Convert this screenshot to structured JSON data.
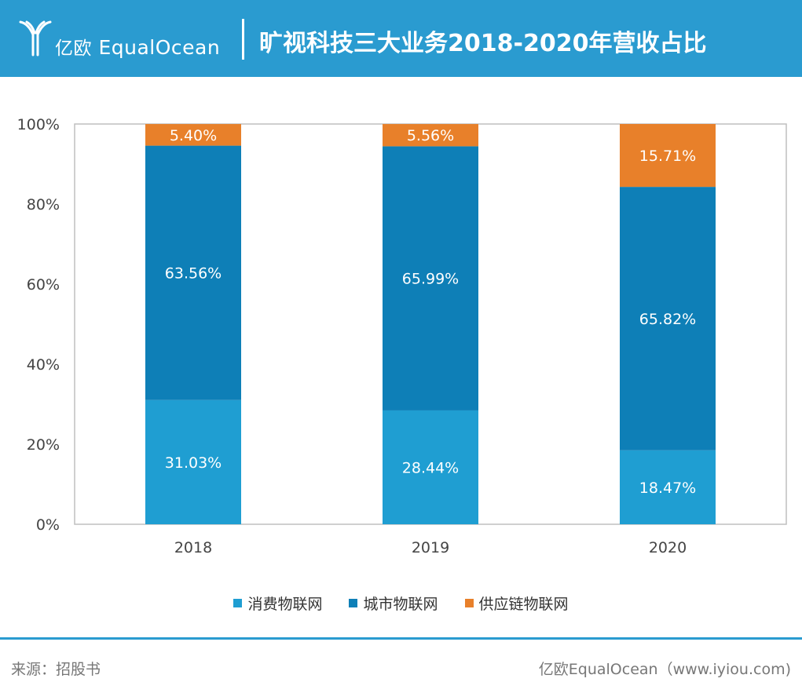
{
  "header": {
    "logo_cn": "亿欧",
    "logo_en": "EqualOcean",
    "title": "旷视科技三大业务2018-2020年营收占比"
  },
  "chart_data": {
    "type": "bar",
    "stacked": true,
    "categories": [
      "2018",
      "2019",
      "2020"
    ],
    "series": [
      {
        "name": "消费物联网",
        "values": [
          31.03,
          28.44,
          18.47
        ],
        "labels": [
          "31.03%",
          "28.44%",
          "18.47%"
        ],
        "color": "#1f9ed2"
      },
      {
        "name": "城市物联网",
        "values": [
          63.56,
          65.99,
          65.82
        ],
        "labels": [
          "63.56%",
          "65.99%",
          "65.82%"
        ],
        "color": "#0e7fb7"
      },
      {
        "name": "供应链物联网",
        "values": [
          5.4,
          5.56,
          15.71
        ],
        "labels": [
          "5.40%",
          "5.56%",
          "15.71%"
        ],
        "color": "#e8802a"
      }
    ],
    "yticks": [
      "0%",
      "20%",
      "40%",
      "60%",
      "80%",
      "100%"
    ],
    "ylim": [
      0,
      100
    ],
    "grid": false,
    "legend_position": "bottom"
  },
  "footer": {
    "source": "来源：招股书",
    "brand": "亿欧EqualOcean（www.iyiou.com)"
  },
  "colors": {
    "header_bg": "#2a9bd0",
    "label_text": "#ffffff",
    "axis_text": "#444444"
  }
}
